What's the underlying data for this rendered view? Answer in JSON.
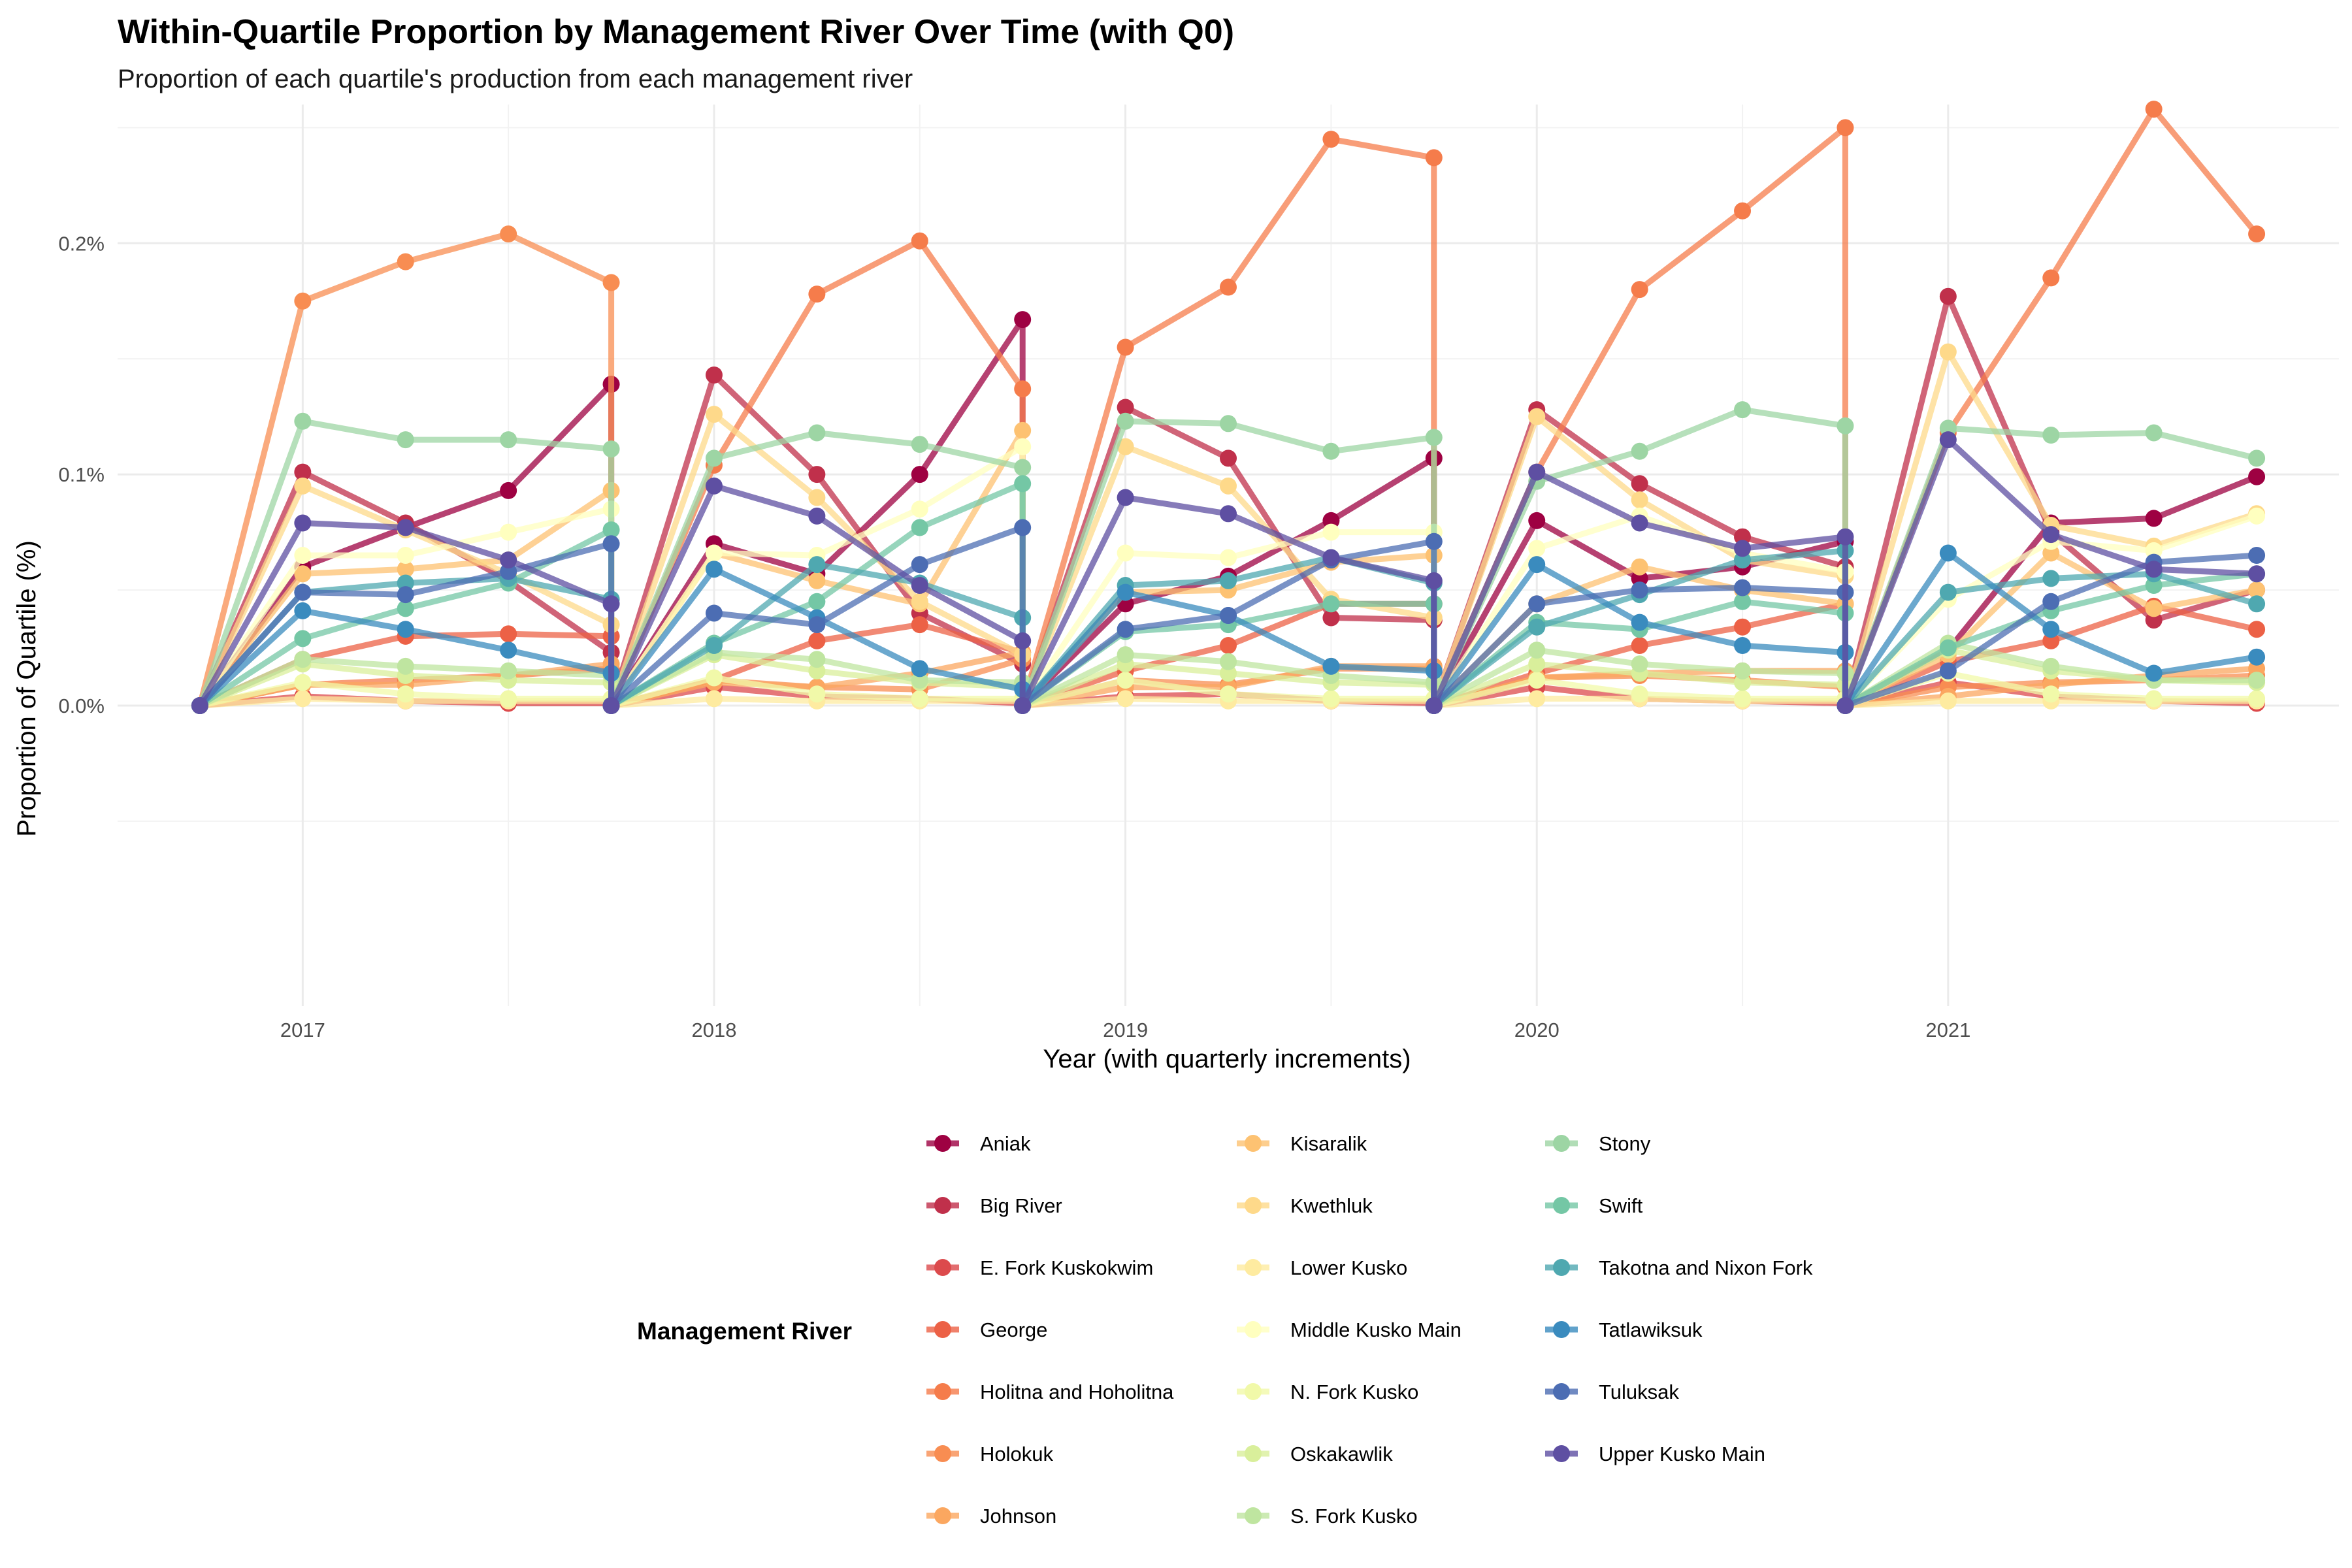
{
  "chart_data": {
    "type": "line",
    "title": "Within-Quartile Proportion by Management River Over Time (with Q0)",
    "subtitle": "Proportion of each quartile's production from each management river",
    "xlabel": "Year (with quarterly increments)",
    "ylabel": "Proportion of Quartile (%)",
    "xlim": [
      2016.55,
      2021.95
    ],
    "ylim": [
      -0.0013,
      0.0026
    ],
    "x_ticks": [
      2017,
      2018,
      2019,
      2020,
      2021
    ],
    "x_tick_labels": [
      "2017",
      "2018",
      "2019",
      "2020",
      "2021"
    ],
    "y_ticks": [
      0,
      0.001,
      0.002
    ],
    "y_tick_labels": [
      "0.0%",
      "0.1%",
      "0.2%"
    ],
    "grid": true,
    "legend_title": "Management River",
    "legend_position": "bottom",
    "x": [
      2016.75,
      2017.0,
      2017.25,
      2017.5,
      2017.75,
      2017.75,
      2018.0,
      2018.25,
      2018.5,
      2018.75,
      2018.75,
      2019.0,
      2019.25,
      2019.5,
      2019.75,
      2019.75,
      2020.0,
      2020.25,
      2020.5,
      2020.75,
      2020.75,
      2021.0,
      2021.25,
      2021.5,
      2021.75
    ],
    "series": [
      {
        "name": "Aniak",
        "color": "#9E0142",
        "values": [
          0,
          0.0006,
          0.00077,
          0.00093,
          0.00139,
          0,
          0.0007,
          0.00057,
          0.001,
          0.00167,
          0,
          0.00044,
          0.00056,
          0.0008,
          0.00107,
          0,
          0.0008,
          0.00055,
          0.0006,
          0.00071,
          0,
          0.00024,
          0.00079,
          0.00081,
          0.00099
        ]
      },
      {
        "name": "Big River",
        "color": "#C0304B",
        "values": [
          0,
          0.00101,
          0.00079,
          0.00054,
          0.00023,
          0,
          0.00143,
          0.001,
          0.0004,
          0.00018,
          0,
          0.00129,
          0.00107,
          0.00038,
          0.00037,
          0,
          0.00128,
          0.00096,
          0.00073,
          0.0006,
          0,
          0.00177,
          0.00075,
          0.00037,
          0.0005
        ]
      },
      {
        "name": "E. Fork Kuskokwim",
        "color": "#DC4A4C",
        "values": [
          0,
          4e-05,
          2e-05,
          1e-05,
          1e-05,
          0,
          8e-05,
          4e-05,
          3e-05,
          1e-05,
          0,
          4e-05,
          5e-05,
          2e-05,
          1e-05,
          0,
          8e-05,
          3e-05,
          2e-05,
          1e-05,
          0,
          0.0001,
          4e-05,
          2e-05,
          1e-05
        ]
      },
      {
        "name": "George",
        "color": "#EC6146",
        "values": [
          0,
          0.0002,
          0.0003,
          0.00031,
          0.0003,
          0,
          0.00011,
          0.00028,
          0.00035,
          0.00023,
          0,
          0.00015,
          0.00026,
          0.00044,
          0.00044,
          0,
          0.00014,
          0.00026,
          0.00034,
          0.00044,
          0,
          0.00019,
          0.00028,
          0.00043,
          0.00033
        ]
      },
      {
        "name": "Holitna and Hoholitna",
        "color": "#F57C4B",
        "values": [
          0,
          9e-05,
          0.00011,
          0.00013,
          0.00016,
          0,
          0.00104,
          0.00178,
          0.00201,
          0.00137,
          0,
          0.00155,
          0.00181,
          0.00245,
          0.00237,
          0,
          0.00101,
          0.0018,
          0.00214,
          0.0025,
          0,
          0.00118,
          0.00185,
          0.00258,
          0.00204
        ]
      },
      {
        "name": "Holokuk",
        "color": "#F88D52",
        "values": [
          0,
          0.00175,
          0.00192,
          0.00204,
          0.00183,
          0,
          0.00011,
          8e-05,
          7e-05,
          0.0002,
          0,
          0.00011,
          9e-05,
          0.00016,
          0.00016,
          0,
          0.00012,
          0.00013,
          0.00011,
          8e-05,
          0,
          8e-05,
          0.0001,
          0.00011,
          0.00013
        ]
      },
      {
        "name": "Johnson",
        "color": "#FBA760",
        "values": [
          0,
          9e-05,
          9e-05,
          0.00013,
          0.00018,
          0,
          0.0001,
          8e-05,
          0.00014,
          0.00023,
          0,
          8e-05,
          8e-05,
          0.00017,
          0.00017,
          0,
          0.00012,
          0.00014,
          0.00015,
          0.00015,
          0,
          4e-05,
          9e-05,
          0.00013,
          0.00016
        ]
      },
      {
        "name": "Kisaralik",
        "color": "#FDC272",
        "values": [
          0,
          0.00057,
          0.00059,
          0.00063,
          0.00093,
          0,
          0.00066,
          0.00054,
          0.00044,
          0.00119,
          0,
          0.00049,
          0.0005,
          0.00062,
          0.00065,
          0,
          0.00044,
          0.0006,
          0.0005,
          0.00044,
          0,
          0.00022,
          0.00066,
          0.00042,
          0.0005
        ]
      },
      {
        "name": "Kwethluk",
        "color": "#FED98A",
        "values": [
          0,
          0.00095,
          0.00076,
          0.00057,
          0.00035,
          0,
          0.00126,
          0.0009,
          0.00045,
          0.00022,
          0,
          0.00112,
          0.00095,
          0.00046,
          0.00038,
          0,
          0.00125,
          0.00089,
          0.00063,
          0.00056,
          0,
          0.00153,
          0.00078,
          0.00069,
          0.00083
        ]
      },
      {
        "name": "Lower Kusko",
        "color": "#FEEBA0",
        "values": [
          0,
          3e-05,
          2e-05,
          2e-05,
          2e-05,
          0,
          3e-05,
          2e-05,
          2e-05,
          2e-05,
          0,
          3e-05,
          2e-05,
          2e-05,
          2e-05,
          0,
          3e-05,
          3e-05,
          2e-05,
          2e-05,
          0,
          2e-05,
          2e-05,
          2e-05,
          2e-05
        ]
      },
      {
        "name": "Middle Kusko Main",
        "color": "#FFFFBF",
        "values": [
          0,
          0.00065,
          0.00065,
          0.00075,
          0.00085,
          0,
          0.00066,
          0.00065,
          0.00085,
          0.00112,
          0,
          0.00066,
          0.00064,
          0.00075,
          0.00075,
          0,
          0.00068,
          0.00082,
          0.00066,
          0.00058,
          0,
          0.00046,
          0.00071,
          0.00067,
          0.00082
        ]
      },
      {
        "name": "N. Fork Kusko",
        "color": "#F1F9A9",
        "values": [
          0,
          0.0001,
          5e-05,
          3e-05,
          3e-05,
          0,
          0.00012,
          5e-05,
          3e-05,
          3e-05,
          0,
          0.00011,
          5e-05,
          3e-05,
          3e-05,
          0,
          0.00011,
          5e-05,
          3e-05,
          3e-05,
          0,
          0.00014,
          5e-05,
          3e-05,
          3e-05
        ]
      },
      {
        "name": "Oskakawlik",
        "color": "#D9EF9B",
        "values": [
          0,
          0.00018,
          0.00013,
          0.00011,
          0.0001,
          0,
          0.00022,
          0.00015,
          0.0001,
          8e-05,
          0,
          0.00018,
          0.00014,
          0.0001,
          9e-05,
          0,
          0.00018,
          0.00014,
          0.0001,
          9e-05,
          0,
          0.00024,
          0.00015,
          0.00011,
          0.0001
        ]
      },
      {
        "name": "S. Fork Kusko",
        "color": "#BFE5A0",
        "values": [
          0,
          0.0002,
          0.00017,
          0.00015,
          0.00013,
          0,
          0.00023,
          0.0002,
          0.00011,
          0.0001,
          0,
          0.00022,
          0.00019,
          0.00013,
          0.0001,
          0,
          0.00024,
          0.00018,
          0.00015,
          0.00014,
          0,
          0.00027,
          0.00017,
          0.00011,
          0.00011
        ]
      },
      {
        "name": "Stony",
        "color": "#9DD5A4",
        "values": [
          0,
          0.00123,
          0.00115,
          0.00115,
          0.00111,
          0,
          0.00107,
          0.00118,
          0.00113,
          0.00103,
          0,
          0.00123,
          0.00122,
          0.0011,
          0.00116,
          0,
          0.00097,
          0.0011,
          0.00128,
          0.00121,
          0,
          0.0012,
          0.00117,
          0.00118,
          0.00107
        ]
      },
      {
        "name": "Swift",
        "color": "#74C7A5",
        "values": [
          0,
          0.00029,
          0.00042,
          0.00053,
          0.00076,
          0,
          0.00027,
          0.00045,
          0.00077,
          0.00096,
          0,
          0.00032,
          0.00035,
          0.00044,
          0.00044,
          0,
          0.00036,
          0.00033,
          0.00045,
          0.0004,
          0,
          0.00025,
          0.00041,
          0.00052,
          0.00057
        ]
      },
      {
        "name": "Takotna and Nixon Fork",
        "color": "#4FA8B0",
        "values": [
          0,
          0.00049,
          0.00053,
          0.00055,
          0.00046,
          0,
          0.00026,
          0.00061,
          0.00053,
          0.00038,
          0,
          0.00052,
          0.00054,
          0.00064,
          0.00053,
          0,
          0.00034,
          0.00048,
          0.00063,
          0.00067,
          0,
          0.00049,
          0.00055,
          0.00057,
          0.00044
        ]
      },
      {
        "name": "Tatlawiksuk",
        "color": "#3A8BBE",
        "values": [
          0,
          0.00041,
          0.00033,
          0.00024,
          0.00014,
          0,
          0.00059,
          0.00038,
          0.00016,
          7e-05,
          0,
          0.00049,
          0.00039,
          0.00017,
          0.00015,
          0,
          0.00061,
          0.00036,
          0.00026,
          0.00023,
          0,
          0.00066,
          0.00033,
          0.00014,
          0.00021
        ]
      },
      {
        "name": "Tuluksak",
        "color": "#4C6DB3",
        "values": [
          0,
          0.00049,
          0.00048,
          0.00058,
          0.0007,
          0,
          0.0004,
          0.00035,
          0.00061,
          0.00077,
          0,
          0.00033,
          0.00039,
          0.00063,
          0.00071,
          0,
          0.00044,
          0.0005,
          0.00051,
          0.00049,
          0,
          0.00015,
          0.00045,
          0.00062,
          0.00065
        ]
      },
      {
        "name": "Upper Kusko Main",
        "color": "#5E4FA2",
        "values": [
          0,
          0.00079,
          0.00077,
          0.00063,
          0.00044,
          0,
          0.00095,
          0.00082,
          0.00052,
          0.00028,
          0,
          0.0009,
          0.00083,
          0.00064,
          0.00054,
          0,
          0.00101,
          0.00079,
          0.00068,
          0.00073,
          0,
          0.00115,
          0.00074,
          0.00059,
          0.00057
        ]
      }
    ]
  }
}
